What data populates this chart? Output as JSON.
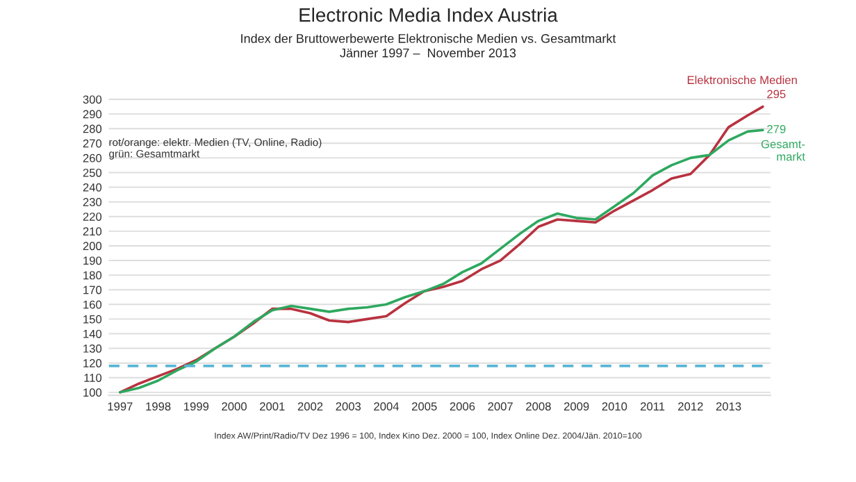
{
  "chart_data": {
    "type": "line",
    "title": "Electronic Media Index Austria",
    "subtitle": "Index der Bruttowerbewerte Elektronische Medien vs. Gesamtmarkt\nJänner 1997 –  November 2013",
    "x": [
      1997,
      1997.5,
      1998,
      1998.5,
      1999,
      1999.5,
      2000,
      2000.5,
      2001,
      2001.5,
      2002,
      2002.5,
      2003,
      2003.5,
      2004,
      2004.5,
      2005,
      2005.5,
      2006,
      2006.5,
      2007,
      2007.5,
      2008,
      2008.5,
      2009,
      2009.5,
      2010,
      2010.5,
      2011,
      2011.5,
      2012,
      2012.5,
      2013,
      2013.5,
      2013.9
    ],
    "series": [
      {
        "name": "Elektronische Medien",
        "color": "#b8323f",
        "values": [
          100,
          106,
          111,
          116,
          122,
          130,
          138,
          147,
          157,
          157,
          154,
          149,
          148,
          150,
          152,
          161,
          169,
          172,
          176,
          184,
          190,
          201,
          213,
          218,
          217,
          216,
          224,
          231,
          238,
          246,
          249,
          262,
          281,
          289,
          295
        ],
        "value_labels": [
          null,
          null,
          null,
          null,
          null,
          null,
          null,
          null,
          null,
          null,
          null,
          null,
          null,
          null,
          null,
          null,
          null,
          null,
          null,
          null,
          null,
          null,
          null,
          null,
          null,
          null,
          null,
          null,
          null,
          null,
          null,
          null,
          null,
          null,
          "295"
        ]
      },
      {
        "name": "Gesamt-\nmarkt",
        "color": "#2ea85f",
        "values": [
          100,
          103,
          108,
          115,
          121,
          130,
          138,
          148,
          156,
          159,
          157,
          155,
          157,
          158,
          160,
          165,
          169,
          174,
          182,
          188,
          198,
          208,
          217,
          222,
          219,
          218,
          227,
          236,
          248,
          255,
          260,
          262,
          272,
          278,
          279
        ],
        "value_labels": [
          null,
          null,
          null,
          null,
          null,
          null,
          null,
          null,
          null,
          null,
          null,
          null,
          null,
          null,
          null,
          null,
          null,
          null,
          null,
          null,
          null,
          null,
          null,
          null,
          null,
          null,
          null,
          null,
          null,
          null,
          null,
          null,
          null,
          null,
          "279"
        ]
      }
    ],
    "xlim": [
      1996.7,
      2014.1
    ],
    "xticks": [
      {
        "value": 1997,
        "label": "1997"
      },
      {
        "value": 1998,
        "label": "1998"
      },
      {
        "value": 1999,
        "label": "1999"
      },
      {
        "value": 2000,
        "label": "2000"
      },
      {
        "value": 2001,
        "label": "2001"
      },
      {
        "value": 2002,
        "label": "2002"
      },
      {
        "value": 2003,
        "label": "2003"
      },
      {
        "value": 2004,
        "label": "2004"
      },
      {
        "value": 2005,
        "label": "2005"
      },
      {
        "value": 2006,
        "label": "2006"
      },
      {
        "value": 2007,
        "label": "2007"
      },
      {
        "value": 2008,
        "label": "2008"
      },
      {
        "value": 2009,
        "label": "2009"
      },
      {
        "value": 2010,
        "label": "2010"
      },
      {
        "value": 2011,
        "label": "2011"
      },
      {
        "value": 2012,
        "label": "2012"
      },
      {
        "value": 2013,
        "label": "2013"
      }
    ],
    "ylim": [
      98,
      302
    ],
    "yticks": [
      100,
      110,
      120,
      130,
      140,
      150,
      160,
      170,
      180,
      190,
      200,
      210,
      220,
      230,
      240,
      250,
      260,
      270,
      280,
      290,
      300
    ],
    "ref_lines": [
      {
        "axis": "y",
        "value": 118,
        "color": "#5ab6d4",
        "line_style": "dashed"
      }
    ],
    "annotations": [
      {
        "text": "rot/orange: elektr. Medien (TV, Online, Radio)\ngrün: Gesamtmarkt"
      },
      {
        "text": "Index AW/Print/Radio/TV Dez 1996 = 100, Index Kino Dez. 2000 = 100, Index Online Dez. 2004/Jän. 2010=100"
      }
    ],
    "grid": "y",
    "legend": false,
    "marker": "none",
    "line_style": "solid"
  }
}
